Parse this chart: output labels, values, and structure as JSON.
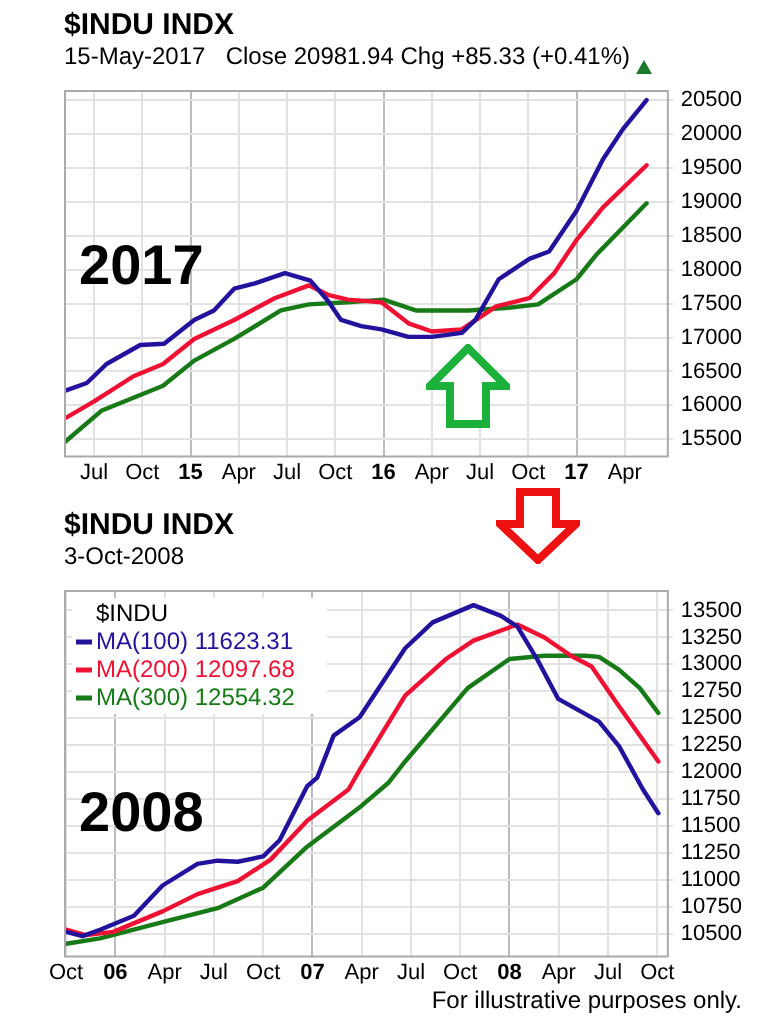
{
  "chart_data": [
    {
      "type": "line",
      "title": "$INDU INDX",
      "subtitle": "15-May-2017",
      "annotations": [
        "Close 20981.94 Chg +85.33 (+0.41%)",
        "2017"
      ],
      "grid": true,
      "legend": false,
      "marker": "none",
      "xlim": [
        "2014-05-05",
        "2017-06-20"
      ],
      "xticks": [
        {
          "value": "2014-07-01",
          "label": "Jul"
        },
        {
          "value": "2014-10-01",
          "label": "Oct"
        },
        {
          "value": "2015-01-01",
          "label": "15"
        },
        {
          "value": "2015-04-01",
          "label": "Apr"
        },
        {
          "value": "2015-07-01",
          "label": "Jul"
        },
        {
          "value": "2015-10-01",
          "label": "Oct"
        },
        {
          "value": "2016-01-01",
          "label": "16"
        },
        {
          "value": "2016-04-01",
          "label": "Apr"
        },
        {
          "value": "2016-07-01",
          "label": "Jul"
        },
        {
          "value": "2016-10-01",
          "label": "Oct"
        },
        {
          "value": "2017-01-01",
          "label": "17"
        },
        {
          "value": "2017-04-01",
          "label": "Apr"
        }
      ],
      "ylim": [
        15260,
        20650
      ],
      "yticks": [
        15500,
        16000,
        16500,
        17000,
        17500,
        18000,
        18500,
        19000,
        19500,
        20000,
        20500
      ],
      "series": [
        {
          "color": "#22129c",
          "x": [
            "2014-05-05",
            "2014-06-18",
            "2014-07-25",
            "2014-09-28",
            "2014-11-12",
            "2015-01-08",
            "2015-02-15",
            "2015-03-23",
            "2015-05-01",
            "2015-06-28",
            "2015-08-15",
            "2015-09-18",
            "2015-10-12",
            "2015-11-20",
            "2015-12-28",
            "2016-02-18",
            "2016-04-01",
            "2016-05-28",
            "2016-06-23",
            "2016-08-06",
            "2016-10-03",
            "2016-11-10",
            "2017-01-01",
            "2017-02-21",
            "2017-03-28",
            "2017-05-12"
          ],
          "values": [
            16210,
            16330,
            16610,
            16890,
            16910,
            17260,
            17400,
            17720,
            17800,
            17950,
            17840,
            17540,
            17260,
            17170,
            17120,
            17010,
            17010,
            17070,
            17260,
            17860,
            18160,
            18270,
            18870,
            19630,
            20070,
            20500
          ]
        },
        {
          "color": "#ee1133",
          "x": [
            "2014-05-05",
            "2014-07-01",
            "2014-09-15",
            "2014-11-10",
            "2015-01-08",
            "2015-03-23",
            "2015-06-08",
            "2015-08-12",
            "2015-09-18",
            "2015-10-25",
            "2015-12-28",
            "2016-02-18",
            "2016-04-01",
            "2016-05-28",
            "2016-08-01",
            "2016-10-03",
            "2016-11-20",
            "2017-01-01",
            "2017-02-21",
            "2017-05-12"
          ],
          "values": [
            15800,
            16060,
            16430,
            16610,
            16980,
            17260,
            17580,
            17770,
            17630,
            17560,
            17520,
            17210,
            17090,
            17120,
            17460,
            17580,
            17950,
            18440,
            18920,
            19540
          ]
        },
        {
          "color": "#177a17",
          "x": [
            "2014-05-05",
            "2014-07-15",
            "2014-11-10",
            "2015-01-08",
            "2015-03-23",
            "2015-06-20",
            "2015-08-12",
            "2015-10-25",
            "2016-01-01",
            "2016-03-01",
            "2016-06-10",
            "2016-08-25",
            "2016-10-20",
            "2017-01-01",
            "2017-02-08",
            "2017-05-12"
          ],
          "values": [
            15450,
            15920,
            16290,
            16660,
            16980,
            17400,
            17490,
            17520,
            17560,
            17400,
            17400,
            17440,
            17490,
            17860,
            18220,
            18980
          ]
        }
      ]
    },
    {
      "type": "line",
      "title": "$INDU INDX",
      "subtitle": "3-Oct-2008",
      "legend_title": "$INDU",
      "annotations": [
        "2008",
        "For illustrative purposes only."
      ],
      "grid": true,
      "legend": "top left",
      "marker": "none",
      "xlim": [
        "2005-09-28",
        "2008-10-19"
      ],
      "xticks": [
        {
          "value": "2005-10-01",
          "label": "Oct"
        },
        {
          "value": "2006-01-01",
          "label": "06"
        },
        {
          "value": "2006-04-01",
          "label": "Apr"
        },
        {
          "value": "2006-07-01",
          "label": "Jul"
        },
        {
          "value": "2006-10-01",
          "label": "Oct"
        },
        {
          "value": "2007-01-01",
          "label": "07"
        },
        {
          "value": "2007-04-01",
          "label": "Apr"
        },
        {
          "value": "2007-07-01",
          "label": "Jul"
        },
        {
          "value": "2007-10-01",
          "label": "Oct"
        },
        {
          "value": "2008-01-01",
          "label": "08"
        },
        {
          "value": "2008-04-01",
          "label": "Apr"
        },
        {
          "value": "2008-07-01",
          "label": "Jul"
        },
        {
          "value": "2008-10-01",
          "label": "Oct"
        }
      ],
      "ylim": [
        10300,
        13690
      ],
      "yticks": [
        10500,
        10750,
        11000,
        11250,
        11500,
        11750,
        12000,
        12250,
        12500,
        12750,
        13000,
        13250,
        13500
      ],
      "series": [
        {
          "name": "MA(100) 11623.31",
          "color": "#22129c",
          "x": [
            "2005-10-01",
            "2005-11-01",
            "2005-12-03",
            "2006-02-05",
            "2006-03-28",
            "2006-06-01",
            "2006-07-08",
            "2006-08-15",
            "2006-10-01",
            "2006-11-01",
            "2006-12-22",
            "2007-01-10",
            "2007-02-10",
            "2007-03-28",
            "2007-06-21",
            "2007-08-11",
            "2007-10-26",
            "2007-12-16",
            "2008-01-16",
            "2008-02-22",
            "2008-03-31",
            "2008-06-15",
            "2008-07-22",
            "2008-09-05",
            "2008-10-03"
          ],
          "values": [
            10520,
            10480,
            10540,
            10670,
            10950,
            11150,
            11180,
            11170,
            11220,
            11370,
            11870,
            11950,
            12340,
            12510,
            13150,
            13390,
            13550,
            13450,
            13350,
            13050,
            12680,
            12470,
            12240,
            11840,
            11620
          ]
        },
        {
          "name": "MA(200) 12097.68",
          "color": "#ee1133",
          "x": [
            "2005-10-01",
            "2005-11-07",
            "2005-12-28",
            "2006-03-28",
            "2006-06-01",
            "2006-08-15",
            "2006-10-15",
            "2006-12-22",
            "2007-03-07",
            "2007-03-28",
            "2007-06-21",
            "2007-09-05",
            "2007-10-26",
            "2008-01-16",
            "2008-03-05",
            "2008-04-24",
            "2008-06-01",
            "2008-07-22",
            "2008-09-05",
            "2008-10-03"
          ],
          "values": [
            10540,
            10490,
            10520,
            10710,
            10870,
            10990,
            11190,
            11550,
            11840,
            12020,
            12710,
            13050,
            13220,
            13370,
            13250,
            13080,
            12980,
            12610,
            12300,
            12100
          ]
        },
        {
          "name": "MA(300) 12554.32",
          "color": "#177a17",
          "x": [
            "2005-10-01",
            "2005-12-03",
            "2006-03-28",
            "2006-07-08",
            "2006-10-01",
            "2006-12-22",
            "2007-04-01",
            "2007-05-20",
            "2007-06-21",
            "2007-10-15",
            "2008-01-01",
            "2008-03-05",
            "2008-05-20",
            "2008-06-15",
            "2008-07-22",
            "2008-08-30",
            "2008-10-03"
          ],
          "values": [
            10410,
            10460,
            10610,
            10740,
            10930,
            11310,
            11690,
            11900,
            12100,
            12780,
            13050,
            13080,
            13080,
            13070,
            12950,
            12780,
            12550
          ]
        }
      ]
    }
  ]
}
